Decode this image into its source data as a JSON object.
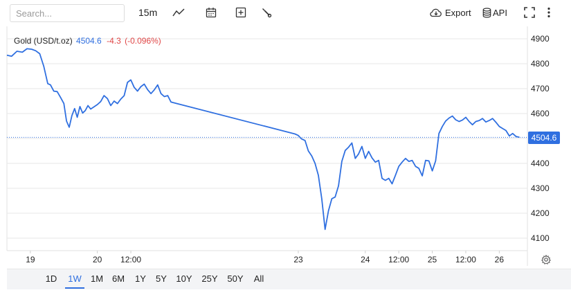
{
  "toolbar": {
    "search_placeholder": "Search...",
    "interval": "15m",
    "export_label": "Export",
    "api_label": "API",
    "icons": [
      "line-chart-icon",
      "calendar-icon",
      "add-indicator-icon",
      "wrench-icon",
      "cloud-download-icon",
      "database-icon",
      "fullscreen-icon",
      "more-vert-icon",
      "gear-icon"
    ]
  },
  "legend": {
    "symbol": "Gold (USD/t.oz)",
    "price": "4504.6",
    "change": "-4.3",
    "change_pct": "(-0.096%)"
  },
  "last_price_label": "4504.6",
  "ranges": [
    "1D",
    "1W",
    "1M",
    "6M",
    "1Y",
    "5Y",
    "10Y",
    "25Y",
    "50Y",
    "All"
  ],
  "active_range": "1W",
  "colors": {
    "line": "#2f6fe0",
    "negative": "#e04646",
    "grid": "#e7e7e7"
  },
  "chart_data": {
    "type": "line",
    "title": "",
    "xlabel": "",
    "ylabel": "",
    "ylim": [
      4050,
      4950
    ],
    "yticks": [
      4100,
      4200,
      4300,
      4400,
      4500,
      4600,
      4700,
      4800,
      4900
    ],
    "xlim": [
      18.65,
      26.42
    ],
    "xticks": [
      {
        "x": 19.0,
        "label": "19"
      },
      {
        "x": 20.0,
        "label": "20"
      },
      {
        "x": 20.5,
        "label": "12:00"
      },
      {
        "x": 23.0,
        "label": "23"
      },
      {
        "x": 24.0,
        "label": "24"
      },
      {
        "x": 24.5,
        "label": "12:00"
      },
      {
        "x": 25.0,
        "label": "25"
      },
      {
        "x": 25.5,
        "label": "12:00"
      },
      {
        "x": 26.0,
        "label": "26"
      }
    ],
    "last_value": 4504.6,
    "grid": true,
    "series": [
      {
        "name": "",
        "x": [
          18.65,
          18.72,
          18.8,
          18.88,
          18.95,
          19.02,
          19.08,
          19.14,
          19.2,
          19.26,
          19.3,
          19.35,
          19.4,
          19.45,
          19.5,
          19.54,
          19.58,
          19.62,
          19.66,
          19.7,
          19.74,
          19.78,
          19.82,
          19.86,
          19.9,
          19.94,
          20.0,
          20.05,
          20.1,
          20.15,
          20.2,
          20.25,
          20.3,
          20.35,
          20.4,
          20.45,
          20.5,
          20.55,
          20.6,
          20.65,
          20.7,
          20.75,
          20.8,
          20.85,
          20.9,
          20.95,
          21.0,
          21.05,
          21.1,
          22.95,
          23.0,
          23.05,
          23.1,
          23.15,
          23.2,
          23.25,
          23.3,
          23.35,
          23.4,
          23.45,
          23.5,
          23.55,
          23.6,
          23.65,
          23.7,
          23.75,
          23.8,
          23.85,
          23.9,
          23.95,
          24.0,
          24.05,
          24.1,
          24.15,
          24.2,
          24.25,
          24.3,
          24.35,
          24.4,
          24.45,
          24.5,
          24.55,
          24.6,
          24.65,
          24.7,
          24.75,
          24.8,
          24.85,
          24.9,
          24.95,
          25.0,
          25.05,
          25.1,
          25.15,
          25.2,
          25.25,
          25.3,
          25.35,
          25.4,
          25.45,
          25.5,
          25.55,
          25.6,
          25.65,
          25.7,
          25.75,
          25.8,
          25.85,
          25.9,
          25.95,
          26.0,
          26.05,
          26.1,
          26.15,
          26.2,
          26.25,
          26.3
        ],
        "values": [
          4834,
          4830,
          4850,
          4846,
          4860,
          4858,
          4852,
          4840,
          4790,
          4720,
          4715,
          4690,
          4688,
          4665,
          4640,
          4570,
          4545,
          4592,
          4620,
          4585,
          4628,
          4602,
          4612,
          4632,
          4618,
          4625,
          4636,
          4648,
          4672,
          4660,
          4632,
          4650,
          4640,
          4658,
          4672,
          4725,
          4735,
          4705,
          4690,
          4708,
          4718,
          4696,
          4680,
          4695,
          4715,
          4680,
          4668,
          4672,
          4646,
          4518,
          4512,
          4498,
          4492,
          4450,
          4430,
          4400,
          4352,
          4258,
          4135,
          4210,
          4258,
          4265,
          4310,
          4408,
          4452,
          4465,
          4482,
          4420,
          4438,
          4468,
          4420,
          4448,
          4422,
          4405,
          4412,
          4340,
          4332,
          4340,
          4318,
          4352,
          4388,
          4405,
          4420,
          4408,
          4412,
          4388,
          4380,
          4350,
          4412,
          4410,
          4370,
          4410,
          4520,
          4548,
          4570,
          4582,
          4590,
          4575,
          4568,
          4574,
          4585,
          4568,
          4555,
          4568,
          4572,
          4580,
          4566,
          4572,
          4580,
          4565,
          4548,
          4540,
          4532,
          4510,
          4520,
          4508,
          4504.6
        ]
      }
    ]
  }
}
